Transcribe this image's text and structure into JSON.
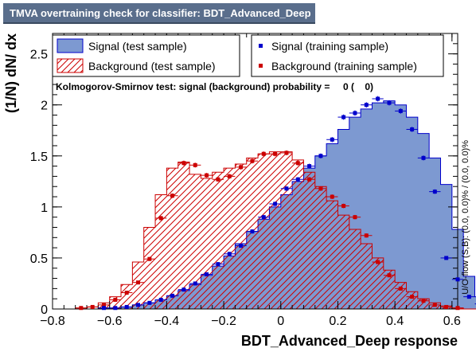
{
  "chart_data": {
    "type": "histogram",
    "title": "TMVA overtraining check for classifier: BDT_Advanced_Deep",
    "xlabel": "BDT_Advanced_Deep response",
    "ylabel": "(1/N) dN/ dx",
    "right_label": "U/O-flow (S,B): (0.0, 0.0)% / (0.0, 0.0)%",
    "xlim": [
      -0.8,
      0.62
    ],
    "ylim": [
      0,
      2.7
    ],
    "x_ticks": [
      -0.8,
      -0.6,
      -0.4,
      -0.2,
      0,
      0.2,
      0.4,
      0.6
    ],
    "x_tick_labels": [
      "−0.8",
      "−0.6",
      "−0.4",
      "−0.2",
      "0",
      "0.2",
      "0.4",
      "0.6"
    ],
    "y_ticks": [
      0,
      0.5,
      1,
      1.5,
      2,
      2.5
    ],
    "y_tick_labels": [
      "0",
      "0.5",
      "1",
      "1.5",
      "2",
      "2.5"
    ],
    "ks_text": "Kolmogorov-Smirnov test: signal (background) probability =     0 (    0)",
    "legend": [
      {
        "label": "Signal (test sample)",
        "style": "filled",
        "color": "#7d99d1"
      },
      {
        "label": "Signal (training sample)",
        "style": "marker",
        "color": "#0000cc"
      },
      {
        "label": "Background (test sample)",
        "style": "hatched",
        "color": "#cc0000"
      },
      {
        "label": "Background (training sample)",
        "style": "marker",
        "color": "#cc0000"
      }
    ],
    "bin_edges_start": -0.76,
    "bin_width": 0.04,
    "signal_test": [
      0.0,
      0.0,
      0.0,
      0.01,
      0.01,
      0.02,
      0.04,
      0.06,
      0.09,
      0.13,
      0.18,
      0.24,
      0.33,
      0.42,
      0.52,
      0.64,
      0.76,
      0.88,
      1.0,
      1.12,
      1.25,
      1.38,
      1.5,
      1.62,
      1.76,
      1.88,
      1.96,
      2.02,
      2.04,
      2.0,
      1.88,
      1.72,
      1.48,
      1.22,
      0.78,
      0.32,
      0.12,
      0.03,
      0.0
    ],
    "signal_train": [
      0.0,
      0.0,
      0.0,
      0.01,
      0.01,
      0.02,
      0.04,
      0.06,
      0.09,
      0.13,
      0.19,
      0.25,
      0.34,
      0.44,
      0.54,
      0.62,
      0.76,
      0.9,
      1.03,
      1.18,
      1.27,
      1.4,
      1.5,
      1.66,
      1.88,
      1.92,
      2.0,
      2.06,
      2.02,
      1.94,
      1.76,
      1.48,
      1.15,
      0.5,
      0.29,
      0.12,
      0.05,
      0.02,
      0.0
    ],
    "background_test": [
      0.0,
      0.01,
      0.02,
      0.06,
      0.12,
      0.24,
      0.46,
      0.8,
      1.12,
      1.38,
      1.44,
      1.32,
      1.28,
      1.34,
      1.38,
      1.42,
      1.48,
      1.52,
      1.54,
      1.54,
      1.46,
      1.34,
      1.2,
      1.06,
      0.92,
      0.78,
      0.64,
      0.5,
      0.38,
      0.26,
      0.17,
      0.1,
      0.06,
      0.03,
      0.01,
      0.0,
      0.0,
      0.0,
      0.0
    ],
    "background_train": [
      0.0,
      0.01,
      0.02,
      0.04,
      0.09,
      0.16,
      0.26,
      0.49,
      0.89,
      1.11,
      1.43,
      1.41,
      1.31,
      1.27,
      1.3,
      1.39,
      1.45,
      1.52,
      1.52,
      1.53,
      1.43,
      1.27,
      1.18,
      1.1,
      1.01,
      0.9,
      0.72,
      0.46,
      0.33,
      0.2,
      0.12,
      0.08,
      0.04,
      0.02,
      0.01,
      0.0,
      0.0,
      0.0,
      0.0
    ]
  },
  "colors": {
    "signal_fill": "#7d99d1",
    "signal_line": "#0000cc",
    "background": "#cc0000",
    "title_bg": "#5a6e8c"
  }
}
